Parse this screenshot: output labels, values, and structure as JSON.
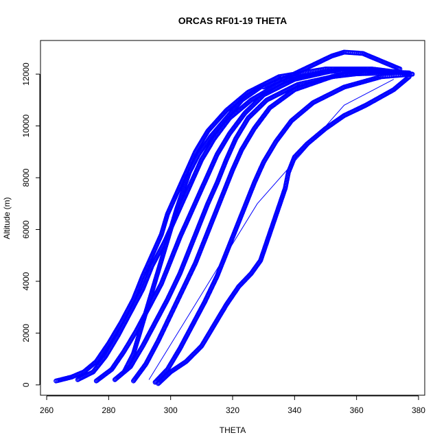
{
  "chart_data": {
    "type": "scatter",
    "title": "ORCAS RF01-19 THETA",
    "xlabel": "THETA",
    "ylabel": "Altitude (m)",
    "xlim": [
      258,
      382
    ],
    "ylim": [
      -400,
      13300
    ],
    "xticks": [
      260,
      280,
      300,
      320,
      340,
      360,
      380
    ],
    "yticks": [
      0,
      2000,
      4000,
      6000,
      8000,
      10000,
      12000
    ],
    "grid": false,
    "marker": "open-circle",
    "color": "#0000ff",
    "series": [
      {
        "points": [
          [
            263,
            150
          ],
          [
            268,
            300
          ],
          [
            272,
            500
          ],
          [
            276,
            900
          ],
          [
            280,
            1600
          ],
          [
            284,
            2400
          ],
          [
            288,
            3300
          ],
          [
            291,
            4200
          ],
          [
            294,
            5000
          ],
          [
            297,
            5800
          ],
          [
            299,
            6600
          ],
          [
            302,
            7400
          ],
          [
            305,
            8200
          ],
          [
            308,
            9000
          ],
          [
            312,
            9800
          ],
          [
            318,
            10600
          ],
          [
            325,
            11300
          ],
          [
            335,
            11900
          ],
          [
            350,
            12200
          ],
          [
            365,
            12200
          ],
          [
            375,
            12050
          ]
        ]
      },
      {
        "points": [
          [
            270,
            200
          ],
          [
            275,
            500
          ],
          [
            279,
            1100
          ],
          [
            283,
            1900
          ],
          [
            287,
            2800
          ],
          [
            291,
            3700
          ],
          [
            294,
            4600
          ],
          [
            298,
            5500
          ],
          [
            301,
            6300
          ],
          [
            304,
            7100
          ],
          [
            307,
            7900
          ],
          [
            310,
            8700
          ],
          [
            314,
            9500
          ],
          [
            319,
            10300
          ],
          [
            326,
            11000
          ],
          [
            336,
            11700
          ],
          [
            350,
            12100
          ],
          [
            367,
            12150
          ],
          [
            378,
            12000
          ]
        ]
      },
      {
        "points": [
          [
            276,
            150
          ],
          [
            281,
            600
          ],
          [
            285,
            1300
          ],
          [
            289,
            2100
          ],
          [
            293,
            3000
          ],
          [
            297,
            3900
          ],
          [
            300,
            4800
          ],
          [
            303,
            5700
          ],
          [
            306,
            6500
          ],
          [
            309,
            7300
          ],
          [
            312,
            8100
          ],
          [
            315,
            8900
          ],
          [
            319,
            9700
          ],
          [
            324,
            10500
          ],
          [
            330,
            11200
          ],
          [
            340,
            11800
          ],
          [
            355,
            12200
          ],
          [
            370,
            12100
          ]
        ]
      },
      {
        "points": [
          [
            282,
            200
          ],
          [
            287,
            700
          ],
          [
            291,
            1500
          ],
          [
            295,
            2400
          ],
          [
            299,
            3300
          ],
          [
            303,
            4300
          ],
          [
            306,
            5200
          ],
          [
            309,
            6100
          ],
          [
            312,
            7000
          ],
          [
            315,
            7800
          ],
          [
            318,
            8700
          ],
          [
            321,
            9500
          ],
          [
            325,
            10300
          ],
          [
            331,
            11000
          ],
          [
            341,
            11600
          ],
          [
            356,
            12000
          ],
          [
            371,
            12050
          ]
        ]
      },
      {
        "points": [
          [
            288,
            150
          ],
          [
            292,
            800
          ],
          [
            296,
            1700
          ],
          [
            300,
            2700
          ],
          [
            304,
            3700
          ],
          [
            308,
            4700
          ],
          [
            311,
            5600
          ],
          [
            314,
            6500
          ],
          [
            317,
            7400
          ],
          [
            320,
            8300
          ],
          [
            323,
            9100
          ],
          [
            327,
            9900
          ],
          [
            332,
            10700
          ],
          [
            340,
            11400
          ],
          [
            352,
            11900
          ],
          [
            366,
            12100
          ],
          [
            377,
            12050
          ]
        ]
      },
      {
        "points": [
          [
            295,
            100
          ],
          [
            299,
            600
          ],
          [
            303,
            1400
          ],
          [
            307,
            2300
          ],
          [
            311,
            3200
          ],
          [
            315,
            4200
          ],
          [
            318,
            5100
          ],
          [
            321,
            6000
          ],
          [
            324,
            6900
          ],
          [
            327,
            7800
          ],
          [
            330,
            8600
          ],
          [
            334,
            9400
          ],
          [
            339,
            10200
          ],
          [
            346,
            10900
          ],
          [
            356,
            11500
          ],
          [
            368,
            11900
          ],
          [
            378,
            12000
          ]
        ]
      },
      {
        "points": [
          [
            296,
            50
          ],
          [
            300,
            500
          ],
          [
            305,
            900
          ],
          [
            310,
            1500
          ],
          [
            314,
            2300
          ],
          [
            318,
            3100
          ],
          [
            322,
            3800
          ],
          [
            326,
            4300
          ],
          [
            329,
            4800
          ],
          [
            331,
            5500
          ],
          [
            333,
            6200
          ],
          [
            335,
            6900
          ],
          [
            337,
            7600
          ],
          [
            338,
            8200
          ],
          [
            340,
            8800
          ],
          [
            344,
            9300
          ],
          [
            350,
            9900
          ],
          [
            356,
            10400
          ],
          [
            363,
            10800
          ],
          [
            372,
            11400
          ],
          [
            377,
            11900
          ]
        ]
      },
      {
        "points": [
          [
            285,
            500
          ],
          [
            288,
            1200
          ],
          [
            290,
            2000
          ],
          [
            292,
            2800
          ],
          [
            294,
            3600
          ],
          [
            296,
            4400
          ],
          [
            298,
            5200
          ],
          [
            300,
            6000
          ],
          [
            302,
            6800
          ],
          [
            304,
            7500
          ],
          [
            306,
            8200
          ],
          [
            309,
            8900
          ],
          [
            313,
            9600
          ],
          [
            318,
            10300
          ],
          [
            323,
            11000
          ],
          [
            329,
            11500
          ]
        ]
      },
      {
        "points": [
          [
            330,
            11500
          ],
          [
            338,
            11900
          ],
          [
            345,
            12300
          ],
          [
            352,
            12700
          ],
          [
            356,
            12850
          ],
          [
            362,
            12800
          ],
          [
            368,
            12500
          ],
          [
            374,
            12200
          ]
        ]
      }
    ],
    "line_segment": [
      [
        293,
        200
      ],
      [
        328,
        7000
      ],
      [
        356,
        10800
      ],
      [
        372,
        11800
      ]
    ]
  }
}
